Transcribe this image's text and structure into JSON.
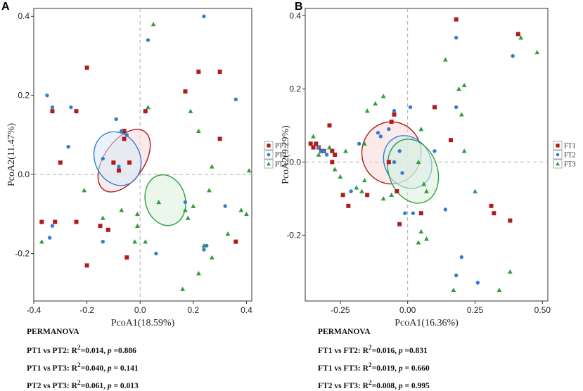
{
  "colors": {
    "group1": "#b01c1c",
    "group2": "#2e7fd0",
    "group3": "#2f9e3f",
    "fill1": "#f7d9d9",
    "fill2": "#d9eaf8",
    "fill3": "#dbf0db"
  },
  "chart_data": [
    {
      "type": "scatter",
      "panel_label": "A",
      "xlabel": "PcoA1(18.59%)",
      "ylabel": "PcoA2(11.47%)",
      "xlim": [
        -0.4,
        0.42
      ],
      "ylim": [
        -0.32,
        0.42
      ],
      "xticks": [
        -0.4,
        -0.2,
        0.0,
        0.2,
        0.4
      ],
      "xtick_labels": [
        "-0.4",
        "-0.2",
        "0.0",
        "0.2",
        "0.4"
      ],
      "yticks": [
        -0.2,
        0.0,
        0.2,
        0.4
      ],
      "ytick_labels": [
        "-0.2",
        "0.0",
        "0.2",
        "0.4"
      ],
      "reference_lines": {
        "x": 0,
        "y": 0
      },
      "legend": [
        "PT1",
        "PT2",
        "PT3"
      ],
      "series": [
        {
          "name": "PT1",
          "marker": "square",
          "points": [
            [
              -0.2,
              0.27
            ],
            [
              -0.33,
              0.16
            ],
            [
              -0.24,
              0.16
            ],
            [
              -0.3,
              0.03
            ],
            [
              -0.37,
              -0.12
            ],
            [
              -0.32,
              -0.12
            ],
            [
              -0.24,
              -0.12
            ],
            [
              -0.2,
              -0.23
            ],
            [
              -0.15,
              -0.13
            ],
            [
              -0.12,
              -0.14
            ],
            [
              -0.05,
              -0.21
            ],
            [
              -0.06,
              0.11
            ],
            [
              -0.1,
              0.03
            ],
            [
              -0.08,
              0.01
            ],
            [
              -0.04,
              0.03
            ],
            [
              0.02,
              0.16
            ],
            [
              0.17,
              0.21
            ],
            [
              0.22,
              0.26
            ],
            [
              0.3,
              0.26
            ],
            [
              0.3,
              0.09
            ],
            [
              0.36,
              -0.17
            ],
            [
              -0.06,
              0.09
            ]
          ]
        },
        {
          "name": "PT2",
          "marker": "circle",
          "points": [
            [
              -0.35,
              0.2
            ],
            [
              -0.33,
              0.17
            ],
            [
              -0.26,
              0.17
            ],
            [
              -0.09,
              0.14
            ],
            [
              -0.07,
              0.11
            ],
            [
              -0.27,
              0.07
            ],
            [
              -0.05,
              0.1
            ],
            [
              -0.14,
              0.04
            ],
            [
              -0.33,
              -0.13
            ],
            [
              -0.34,
              -0.16
            ],
            [
              -0.14,
              -0.17
            ],
            [
              0.03,
              0.34
            ],
            [
              0.24,
              0.4
            ],
            [
              0.36,
              0.19
            ],
            [
              0.17,
              -0.07
            ],
            [
              0.24,
              -0.19
            ],
            [
              0.32,
              -0.08
            ],
            [
              0.25,
              -0.18
            ],
            [
              0.06,
              -0.2
            ],
            [
              -0.08,
              0.02
            ]
          ]
        },
        {
          "name": "PT3",
          "marker": "triangle",
          "points": [
            [
              0.05,
              0.38
            ],
            [
              0.03,
              0.17
            ],
            [
              -0.14,
              -0.11
            ],
            [
              -0.37,
              -0.17
            ],
            [
              -0.02,
              -0.17
            ],
            [
              -0.01,
              -0.13
            ],
            [
              0.02,
              -0.17
            ],
            [
              -0.07,
              -0.09
            ],
            [
              0.17,
              -0.09
            ],
            [
              0.18,
              -0.11
            ],
            [
              0.16,
              -0.29
            ],
            [
              0.27,
              -0.21
            ],
            [
              0.22,
              -0.25
            ],
            [
              0.24,
              -0.18
            ],
            [
              0.26,
              -0.04
            ],
            [
              0.33,
              -0.15
            ],
            [
              0.38,
              -0.09
            ],
            [
              0.4,
              -0.1
            ],
            [
              0.41,
              0.01
            ],
            [
              0.27,
              0.02
            ],
            [
              0.22,
              0.11
            ],
            [
              0.19,
              0.16
            ],
            [
              0.07,
              -0.07
            ],
            [
              -0.21,
              -0.04
            ],
            [
              -0.01,
              -0.1
            ],
            [
              0.2,
              -0.08
            ]
          ]
        }
      ],
      "ellipses": [
        {
          "group": "PT1",
          "center": [
            -0.06,
            0.035
          ],
          "rx": 0.075,
          "ry": 0.09,
          "angle_deg": 35
        },
        {
          "group": "PT2",
          "center": [
            -0.085,
            0.04
          ],
          "rx": 0.085,
          "ry": 0.07,
          "angle_deg": -25
        },
        {
          "group": "PT3",
          "center": [
            0.095,
            -0.065
          ],
          "rx": 0.075,
          "ry": 0.065,
          "angle_deg": -15
        }
      ],
      "stats_title": "PERMANOVA",
      "stats": [
        {
          "label": "PT1 vs PT2: ",
          "r2": "=0.014, ",
          "p_sym": "p",
          "p": " =0.886"
        },
        {
          "label": "PT1 vs PT3: ",
          "r2": "=0.040, ",
          "p_sym": "p",
          "p": " = 0.141"
        },
        {
          "label": "PT2 vs PT3: ",
          "r2": "=0.061, ",
          "p_sym": "p",
          "p": " = 0.013"
        }
      ]
    },
    {
      "type": "scatter",
      "panel_label": "B",
      "xlabel": "PcoA1(16.36%)",
      "ylabel": "PcoA2(9.29%)",
      "xlim": [
        -0.38,
        0.52
      ],
      "ylim": [
        -0.38,
        0.42
      ],
      "xticks": [
        -0.25,
        0.0,
        0.25,
        0.5
      ],
      "xtick_labels": [
        "-0.25",
        "0.00",
        "0.25",
        "0.50"
      ],
      "yticks": [
        -0.2,
        0.0,
        0.2,
        0.4
      ],
      "ytick_labels": [
        "-0.2",
        "0.0",
        "0.2",
        "0.4"
      ],
      "reference_lines": {
        "x": 0,
        "y": 0
      },
      "legend": [
        "FT1",
        "FT2",
        "FT3"
      ],
      "series": [
        {
          "name": "FT1",
          "marker": "square",
          "points": [
            [
              -0.36,
              0.05
            ],
            [
              -0.35,
              0.04
            ],
            [
              -0.34,
              0.05
            ],
            [
              -0.33,
              0.04
            ],
            [
              -0.32,
              0.03
            ],
            [
              -0.31,
              0.03
            ],
            [
              -0.29,
              0.1
            ],
            [
              -0.28,
              0.0
            ],
            [
              -0.28,
              0.03
            ],
            [
              -0.27,
              0.02
            ],
            [
              -0.24,
              -0.09
            ],
            [
              -0.22,
              -0.12
            ],
            [
              -0.15,
              -0.09
            ],
            [
              -0.07,
              0.0
            ],
            [
              -0.06,
              0.11
            ],
            [
              -0.04,
              -0.08
            ],
            [
              -0.03,
              -0.17
            ],
            [
              0.05,
              -0.14
            ],
            [
              0.1,
              0.15
            ],
            [
              0.16,
              0.06
            ],
            [
              0.18,
              0.39
            ],
            [
              0.41,
              0.35
            ],
            [
              0.31,
              -0.12
            ],
            [
              0.32,
              -0.14
            ],
            [
              0.38,
              -0.16
            ],
            [
              -0.05,
              0.13
            ]
          ]
        },
        {
          "name": "FT2",
          "marker": "circle",
          "points": [
            [
              -0.33,
              0.04
            ],
            [
              -0.32,
              0.03
            ],
            [
              -0.31,
              0.03
            ],
            [
              -0.3,
              0.02
            ],
            [
              -0.21,
              -0.08
            ],
            [
              -0.11,
              0.08
            ],
            [
              -0.07,
              0.09
            ],
            [
              -0.05,
              0.14
            ],
            [
              -0.05,
              0.0
            ],
            [
              -0.03,
              0.03
            ],
            [
              -0.02,
              -0.03
            ],
            [
              -0.01,
              -0.14
            ],
            [
              0.02,
              -0.14
            ],
            [
              0.01,
              0.15
            ],
            [
              0.1,
              0.03
            ],
            [
              0.18,
              0.34
            ],
            [
              0.18,
              0.15
            ],
            [
              0.2,
              -0.26
            ],
            [
              0.26,
              -0.33
            ],
            [
              0.39,
              0.29
            ],
            [
              0.14,
              -0.13
            ],
            [
              0.18,
              -0.31
            ],
            [
              -0.18,
              0.05
            ],
            [
              -0.1,
              0.07
            ]
          ]
        },
        {
          "name": "FT3",
          "marker": "triangle",
          "points": [
            [
              -0.35,
              0.07
            ],
            [
              -0.33,
              0.02
            ],
            [
              -0.29,
              0.04
            ],
            [
              -0.27,
              -0.02
            ],
            [
              -0.25,
              -0.04
            ],
            [
              -0.23,
              0.03
            ],
            [
              -0.19,
              -0.07
            ],
            [
              -0.17,
              -0.08
            ],
            [
              -0.16,
              -0.05
            ],
            [
              -0.15,
              0.14
            ],
            [
              -0.12,
              0.16
            ],
            [
              -0.09,
              0.18
            ],
            [
              -0.06,
              -0.09
            ],
            [
              -0.09,
              -0.1
            ],
            [
              0.05,
              0.09
            ],
            [
              0.07,
              -0.08
            ],
            [
              0.05,
              -0.19
            ],
            [
              0.07,
              -0.21
            ],
            [
              0.04,
              -0.22
            ],
            [
              0.17,
              -0.35
            ],
            [
              0.14,
              0.28
            ],
            [
              0.19,
              0.2
            ],
            [
              0.21,
              0.21
            ],
            [
              0.21,
              0.03
            ],
            [
              0.2,
              0.13
            ],
            [
              0.25,
              -0.08
            ],
            [
              0.34,
              -0.35
            ],
            [
              0.38,
              -0.3
            ],
            [
              0.42,
              0.34
            ],
            [
              0.48,
              0.3
            ],
            [
              0.06,
              -0.06
            ],
            [
              -0.16,
              0.05
            ],
            [
              0.04,
              0.0
            ]
          ]
        }
      ],
      "ellipses": [
        {
          "group": "FT1",
          "center": [
            -0.06,
            0.025
          ],
          "rx": 0.11,
          "ry": 0.085,
          "angle_deg": 0
        },
        {
          "group": "FT2",
          "center": [
            0.0,
            0.0
          ],
          "rx": 0.085,
          "ry": 0.075,
          "angle_deg": -30
        },
        {
          "group": "FT3",
          "center": [
            0.02,
            -0.025
          ],
          "rx": 0.09,
          "ry": 0.09,
          "angle_deg": -20
        }
      ],
      "stats_title": "PERMANOVA",
      "stats": [
        {
          "label": "FT1 vs FT2: ",
          "r2": "=0.016, ",
          "p_sym": "p",
          "p": " =0.831"
        },
        {
          "label": "FT1 vs FT3: ",
          "r2": "=0.019, ",
          "p_sym": "p",
          "p": " = 0.660"
        },
        {
          "label": "FT2 vs FT3: ",
          "r2": "=0.008, ",
          "p_sym": "p",
          "p": " = 0.995"
        }
      ]
    }
  ]
}
